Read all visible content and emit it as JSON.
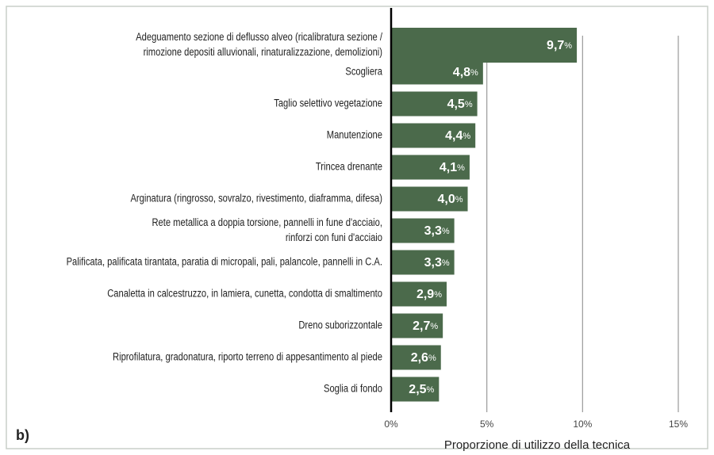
{
  "chart_data": {
    "type": "barh",
    "categories": [
      [
        "Adeguamento sezione di deflusso alveo (ricalibratura sezione /",
        "rimozione depositi alluvionali, rinaturalizzazione, demolizioni)"
      ],
      [
        "Scogliera"
      ],
      [
        "Taglio selettivo vegetazione"
      ],
      [
        "Manutenzione"
      ],
      [
        "Trincea drenante"
      ],
      [
        "Arginatura (ringrosso, sovralzo, rivestimento, diaframma, difesa)"
      ],
      [
        "Rete metallica a doppia torsione, pannelli in fune d'acciaio,",
        "rinforzi con funi d'acciaio"
      ],
      [
        "Palificata, palificata tirantata, paratia di micropali, pali, palancole, pannelli in C.A."
      ],
      [
        "Canaletta in calcestruzzo, in lamiera, cunetta, condotta di smaltimento"
      ],
      [
        "Dreno suborizzontale"
      ],
      [
        "Riprofilatura, gradonatura, riporto terreno di appesantimento al piede"
      ],
      [
        "Soglia di fondo"
      ]
    ],
    "values": [
      9.7,
      4.8,
      4.5,
      4.4,
      4.1,
      4.0,
      3.3,
      3.3,
      2.9,
      2.7,
      2.6,
      2.5
    ],
    "value_labels": [
      "9,7%",
      "4,8%",
      "4,5%",
      "4,4%",
      "4,1%",
      "4,0%",
      "3,3%",
      "3,3%",
      "2,9%",
      "2,7%",
      "2,6%",
      "2,5%"
    ],
    "color": "#4b6a4b",
    "xlim": [
      0,
      15
    ],
    "xticks": [
      {
        "value": 0,
        "label": "0%"
      },
      {
        "value": 5,
        "label": "5%"
      },
      {
        "value": 10,
        "label": "10%"
      },
      {
        "value": 15,
        "label": "15%"
      }
    ],
    "xlabel": "Proporzione di utilizzo della tecnica",
    "annotation": "b)",
    "grid": true
  }
}
